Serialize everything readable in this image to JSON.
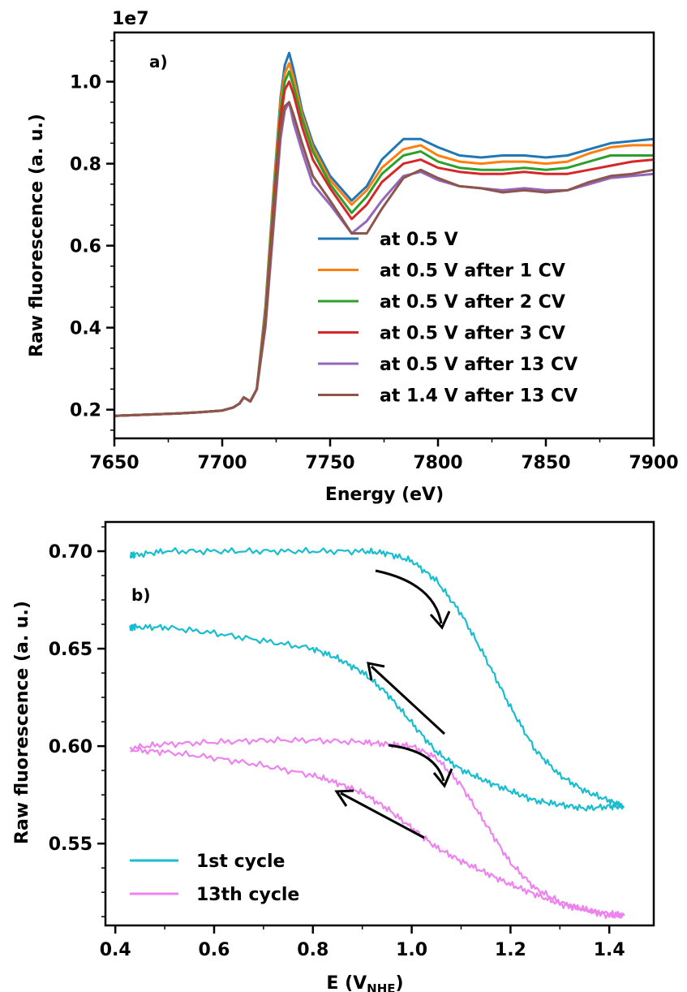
{
  "chart_data": [
    {
      "panel": "a)",
      "type": "line",
      "xlabel": "Energy (eV)",
      "ylabel": "Raw fluorescence (a. u.)",
      "offset_text": "1e7",
      "xlim": [
        7650,
        7900
      ],
      "ylim": [
        0.13,
        1.12
      ],
      "xticks": [
        "7650",
        "7700",
        "7750",
        "7800",
        "7850",
        "7900"
      ],
      "yticks": [
        "0.2",
        "0.4",
        "0.6",
        "0.8",
        "1.0"
      ],
      "legend_position": "center-right",
      "series": [
        {
          "name": "at 0.5 V",
          "color": "#1f77b4",
          "x": [
            7650,
            7660,
            7670,
            7680,
            7690,
            7700,
            7705,
            7708,
            7710,
            7713,
            7716,
            7720,
            7724,
            7727,
            7729,
            7731,
            7733,
            7737,
            7742,
            7750,
            7760,
            7767,
            7774,
            7784,
            7792,
            7800,
            7810,
            7820,
            7830,
            7840,
            7850,
            7860,
            7870,
            7880,
            7890,
            7900
          ],
          "y": [
            0.185,
            0.187,
            0.189,
            0.191,
            0.194,
            0.198,
            0.205,
            0.215,
            0.23,
            0.22,
            0.25,
            0.45,
            0.75,
            0.96,
            1.04,
            1.07,
            1.03,
            0.93,
            0.85,
            0.77,
            0.71,
            0.745,
            0.81,
            0.86,
            0.86,
            0.84,
            0.82,
            0.815,
            0.82,
            0.82,
            0.815,
            0.82,
            0.835,
            0.85,
            0.855,
            0.86
          ]
        },
        {
          "name": "at 0.5 V after 1 CV",
          "color": "#ff7f0e",
          "x": [
            7650,
            7660,
            7670,
            7680,
            7690,
            7700,
            7705,
            7708,
            7710,
            7713,
            7716,
            7720,
            7724,
            7727,
            7729,
            7731,
            7733,
            7737,
            7742,
            7750,
            7760,
            7767,
            7774,
            7784,
            7792,
            7800,
            7810,
            7820,
            7830,
            7840,
            7850,
            7860,
            7870,
            7880,
            7890,
            7900
          ],
          "y": [
            0.185,
            0.187,
            0.189,
            0.191,
            0.194,
            0.198,
            0.205,
            0.215,
            0.23,
            0.22,
            0.25,
            0.44,
            0.74,
            0.95,
            1.02,
            1.045,
            1.01,
            0.92,
            0.84,
            0.76,
            0.7,
            0.735,
            0.79,
            0.835,
            0.845,
            0.82,
            0.805,
            0.8,
            0.805,
            0.805,
            0.8,
            0.805,
            0.825,
            0.84,
            0.845,
            0.845
          ]
        },
        {
          "name": "at 0.5 V after 2 CV",
          "color": "#2ca02c",
          "x": [
            7650,
            7660,
            7670,
            7680,
            7690,
            7700,
            7705,
            7708,
            7710,
            7713,
            7716,
            7720,
            7724,
            7727,
            7729,
            7731,
            7733,
            7737,
            7742,
            7750,
            7760,
            7767,
            7774,
            7784,
            7792,
            7800,
            7810,
            7820,
            7830,
            7840,
            7850,
            7860,
            7870,
            7880,
            7890,
            7900
          ],
          "y": [
            0.185,
            0.187,
            0.189,
            0.191,
            0.194,
            0.198,
            0.205,
            0.215,
            0.23,
            0.22,
            0.25,
            0.43,
            0.72,
            0.93,
            1.0,
            1.025,
            0.99,
            0.91,
            0.83,
            0.75,
            0.68,
            0.72,
            0.775,
            0.82,
            0.83,
            0.805,
            0.79,
            0.785,
            0.785,
            0.79,
            0.785,
            0.79,
            0.805,
            0.82,
            0.82,
            0.82
          ]
        },
        {
          "name": "at 0.5 V after 3 CV",
          "color": "#d62728",
          "x": [
            7650,
            7660,
            7670,
            7680,
            7690,
            7700,
            7705,
            7708,
            7710,
            7713,
            7716,
            7720,
            7724,
            7727,
            7729,
            7731,
            7733,
            7737,
            7742,
            7750,
            7760,
            7767,
            7774,
            7784,
            7792,
            7800,
            7810,
            7820,
            7830,
            7840,
            7850,
            7860,
            7870,
            7880,
            7890,
            7900
          ],
          "y": [
            0.185,
            0.187,
            0.189,
            0.191,
            0.194,
            0.198,
            0.205,
            0.215,
            0.23,
            0.22,
            0.25,
            0.42,
            0.7,
            0.91,
            0.98,
            1.0,
            0.97,
            0.89,
            0.81,
            0.74,
            0.665,
            0.7,
            0.755,
            0.8,
            0.81,
            0.79,
            0.78,
            0.775,
            0.775,
            0.78,
            0.775,
            0.775,
            0.785,
            0.795,
            0.805,
            0.81
          ]
        },
        {
          "name": "at 0.5 V after 13 CV",
          "color": "#9467bd",
          "x": [
            7650,
            7660,
            7670,
            7680,
            7690,
            7700,
            7705,
            7708,
            7710,
            7713,
            7716,
            7720,
            7724,
            7727,
            7729,
            7731,
            7733,
            7737,
            7742,
            7750,
            7760,
            7767,
            7774,
            7784,
            7792,
            7800,
            7810,
            7820,
            7830,
            7840,
            7850,
            7860,
            7870,
            7880,
            7890,
            7900
          ],
          "y": [
            0.185,
            0.187,
            0.189,
            0.191,
            0.194,
            0.198,
            0.205,
            0.215,
            0.23,
            0.22,
            0.25,
            0.4,
            0.66,
            0.86,
            0.93,
            0.95,
            0.9,
            0.83,
            0.75,
            0.7,
            0.63,
            0.66,
            0.71,
            0.77,
            0.78,
            0.76,
            0.745,
            0.74,
            0.735,
            0.74,
            0.735,
            0.735,
            0.75,
            0.765,
            0.77,
            0.775
          ]
        },
        {
          "name": "at 1.4 V after 13 CV",
          "color": "#8c564b",
          "x": [
            7650,
            7660,
            7670,
            7680,
            7690,
            7700,
            7705,
            7708,
            7710,
            7713,
            7716,
            7720,
            7724,
            7727,
            7729,
            7731,
            7733,
            7737,
            7742,
            7750,
            7760,
            7767,
            7774,
            7784,
            7792,
            7800,
            7810,
            7820,
            7830,
            7840,
            7850,
            7860,
            7870,
            7880,
            7890,
            7900
          ],
          "y": [
            0.185,
            0.187,
            0.189,
            0.191,
            0.194,
            0.198,
            0.205,
            0.215,
            0.23,
            0.22,
            0.25,
            0.41,
            0.68,
            0.88,
            0.94,
            0.95,
            0.92,
            0.85,
            0.77,
            0.71,
            0.63,
            0.63,
            0.69,
            0.765,
            0.785,
            0.765,
            0.745,
            0.74,
            0.73,
            0.735,
            0.73,
            0.735,
            0.755,
            0.77,
            0.775,
            0.785
          ]
        }
      ]
    },
    {
      "panel": "b)",
      "type": "line",
      "xlabel": "E (V",
      "xlabel_subscript": "NHE",
      "xlabel_close": ")",
      "ylabel": "Raw fluorescence (a. u.)",
      "xlim": [
        0.38,
        1.49
      ],
      "ylim": [
        0.508,
        0.715
      ],
      "xticks": [
        "0.4",
        "0.6",
        "0.8",
        "1.0",
        "1.2",
        "1.4"
      ],
      "yticks": [
        "0.55",
        "0.60",
        "0.65",
        "0.70"
      ],
      "legend_position": "lower-left",
      "series": [
        {
          "name": "1st cycle",
          "color": "#17becf",
          "sweep": "upper",
          "x": [
            0.43,
            0.44,
            0.5,
            0.6,
            0.7,
            0.8,
            0.9,
            0.95,
            1.0,
            1.05,
            1.1,
            1.15,
            1.2,
            1.25,
            1.3,
            1.35,
            1.4,
            1.43
          ],
          "y": [
            0.698,
            0.698,
            0.7,
            0.7,
            0.7,
            0.7,
            0.7,
            0.699,
            0.695,
            0.685,
            0.668,
            0.645,
            0.62,
            0.598,
            0.585,
            0.577,
            0.572,
            0.569
          ]
        },
        {
          "name": "1st cycle",
          "color": "#17becf",
          "sweep": "lower",
          "x": [
            0.43,
            0.44,
            0.5,
            0.6,
            0.7,
            0.8,
            0.85,
            0.9,
            0.95,
            1.0,
            1.05,
            1.1,
            1.15,
            1.2,
            1.25,
            1.3,
            1.35,
            1.4,
            1.43
          ],
          "y": [
            0.661,
            0.661,
            0.661,
            0.658,
            0.654,
            0.65,
            0.645,
            0.638,
            0.627,
            0.612,
            0.597,
            0.588,
            0.582,
            0.577,
            0.572,
            0.57,
            0.568,
            0.569,
            0.569
          ]
        },
        {
          "name": "13th cycle",
          "color": "#ee82ee",
          "sweep": "upper",
          "x": [
            0.43,
            0.5,
            0.6,
            0.7,
            0.8,
            0.9,
            0.95,
            1.0,
            1.05,
            1.1,
            1.15,
            1.2,
            1.25,
            1.3,
            1.35,
            1.4,
            1.43
          ],
          "y": [
            0.599,
            0.601,
            0.602,
            0.603,
            0.603,
            0.602,
            0.601,
            0.6,
            0.594,
            0.58,
            0.56,
            0.54,
            0.527,
            0.52,
            0.516,
            0.513,
            0.513
          ]
        },
        {
          "name": "13th cycle",
          "color": "#ee82ee",
          "sweep": "lower",
          "x": [
            0.43,
            0.5,
            0.6,
            0.7,
            0.8,
            0.85,
            0.9,
            0.95,
            1.0,
            1.05,
            1.1,
            1.15,
            1.2,
            1.25,
            1.3,
            1.35,
            1.4,
            1.43
          ],
          "y": [
            0.598,
            0.597,
            0.594,
            0.59,
            0.585,
            0.581,
            0.576,
            0.568,
            0.558,
            0.548,
            0.541,
            0.535,
            0.529,
            0.524,
            0.519,
            0.516,
            0.514,
            0.513
          ]
        }
      ]
    }
  ]
}
